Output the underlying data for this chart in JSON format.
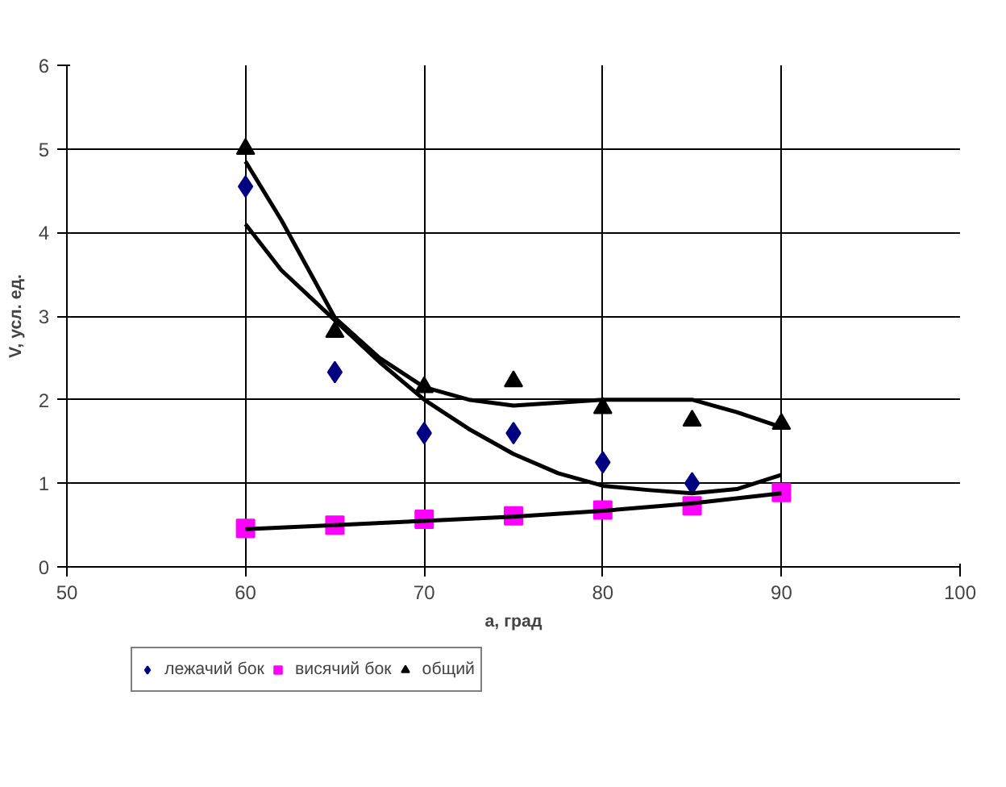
{
  "chart_data": {
    "type": "scatter",
    "xlabel": "a, град",
    "ylabel": "V, усл. ед.",
    "x": [
      60,
      65,
      70,
      75,
      80,
      85,
      90
    ],
    "series": [
      {
        "name": "лежачий бок",
        "color": "#000080",
        "marker": "diamond",
        "values": [
          4.55,
          2.33,
          1.6,
          1.6,
          1.25,
          1.0,
          null
        ]
      },
      {
        "name": "висячий бок",
        "color": "#ff00ff",
        "marker": "square",
        "values": [
          0.46,
          0.5,
          0.57,
          0.61,
          0.68,
          0.73,
          0.89
        ]
      },
      {
        "name": "общий",
        "color": "#000000",
        "marker": "triangle",
        "values": [
          5.0,
          2.81,
          2.15,
          2.22,
          1.9,
          1.75,
          1.71
        ]
      },
      {
        "type": "line",
        "color": "#000000",
        "marker": "none",
        "x": [
          60,
          62,
          65,
          67.5,
          70,
          72.5,
          75,
          77.5,
          80,
          82.5,
          85,
          87.5,
          90
        ],
        "values": [
          4.1,
          3.55,
          2.95,
          2.45,
          2.0,
          1.65,
          1.35,
          1.12,
          0.97,
          0.92,
          0.88,
          0.93,
          1.1
        ]
      },
      {
        "type": "line",
        "color": "#000000",
        "marker": "none",
        "x": [
          60,
          62,
          65,
          67.5,
          70,
          72.5,
          75,
          80,
          85,
          87.5,
          90
        ],
        "values": [
          4.85,
          4.15,
          2.98,
          2.5,
          2.15,
          2.0,
          1.93,
          2.0,
          2.0,
          1.85,
          1.67
        ]
      },
      {
        "type": "line",
        "color": "#000000",
        "marker": "none",
        "x": [
          60,
          65,
          70,
          75,
          80,
          85,
          90
        ],
        "values": [
          0.45,
          0.5,
          0.55,
          0.6,
          0.67,
          0.76,
          0.88
        ]
      }
    ],
    "xlim": [
      50,
      100
    ],
    "xticks": [
      50,
      60,
      70,
      80,
      90,
      100
    ],
    "ylim": [
      0,
      6
    ],
    "yticks": [
      0,
      1,
      2,
      3,
      4,
      5,
      6
    ],
    "grid": true,
    "legend": "bottom"
  }
}
